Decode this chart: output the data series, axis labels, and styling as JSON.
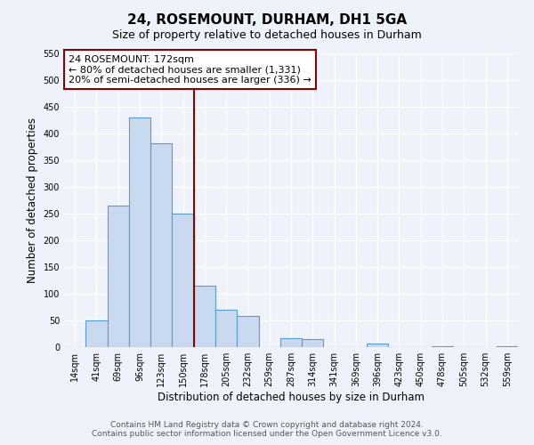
{
  "title": "24, ROSEMOUNT, DURHAM, DH1 5GA",
  "subtitle": "Size of property relative to detached houses in Durham",
  "xlabel": "Distribution of detached houses by size in Durham",
  "ylabel": "Number of detached properties",
  "bar_labels": [
    "14sqm",
    "41sqm",
    "69sqm",
    "96sqm",
    "123sqm",
    "150sqm",
    "178sqm",
    "205sqm",
    "232sqm",
    "259sqm",
    "287sqm",
    "314sqm",
    "341sqm",
    "369sqm",
    "396sqm",
    "423sqm",
    "450sqm",
    "478sqm",
    "505sqm",
    "532sqm",
    "559sqm"
  ],
  "bar_values": [
    0,
    50,
    265,
    430,
    382,
    250,
    115,
    70,
    58,
    0,
    16,
    15,
    0,
    0,
    7,
    0,
    0,
    2,
    0,
    0,
    2
  ],
  "bar_color": "#c8d9f0",
  "bar_edge_color": "#5b9bd5",
  "vline_x": 5.5,
  "vline_color": "#8b0000",
  "annotation_line1": "24 ROSEMOUNT: 172sqm",
  "annotation_line2": "← 80% of detached houses are smaller (1,331)",
  "annotation_line3": "20% of semi-detached houses are larger (336) →",
  "annotation_box_color": "#ffffff",
  "annotation_box_edge": "#8b0000",
  "ylim": [
    0,
    550
  ],
  "yticks": [
    0,
    50,
    100,
    150,
    200,
    250,
    300,
    350,
    400,
    450,
    500,
    550
  ],
  "footer1": "Contains HM Land Registry data © Crown copyright and database right 2024.",
  "footer2": "Contains public sector information licensed under the Open Government Licence v3.0.",
  "bg_color": "#eef2fa",
  "grid_color": "#ffffff",
  "title_fontsize": 11,
  "subtitle_fontsize": 9,
  "axis_label_fontsize": 8.5,
  "tick_fontsize": 7,
  "annotation_fontsize": 8,
  "footer_fontsize": 6.5
}
